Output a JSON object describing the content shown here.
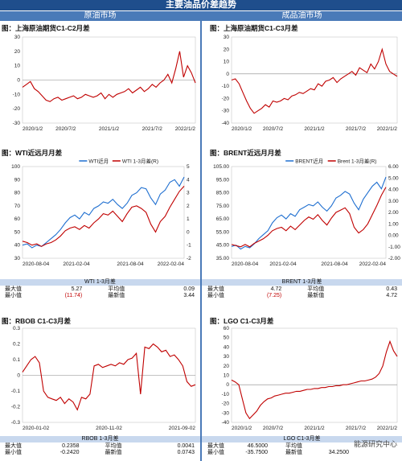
{
  "banner": "主要油品价差趋势",
  "col_left": "原油市场",
  "col_right": "成品油市场",
  "watermark": "能源研究中心",
  "colors": {
    "blue": "#1f6fd0",
    "red": "#c00000",
    "banner": "#1f4e8c"
  },
  "chart_data": [
    {
      "id": "c1",
      "type": "line",
      "title": "图：上海原油期货C1-C2月差",
      "xlabels": [
        "2020/1/2",
        "2020/7/2",
        "2021/1/2",
        "2021/7/2",
        "2022/1/2"
      ],
      "yticks": [
        30,
        20,
        10,
        0,
        -10,
        -20,
        -30
      ],
      "ylim": [
        -30,
        30
      ],
      "series": [
        {
          "color": "red",
          "y": [
            -5,
            -3,
            -1,
            -6,
            -8,
            -11,
            -14,
            -15,
            -13,
            -12,
            -14,
            -13,
            -12,
            -11,
            -13,
            -12,
            -10,
            -11,
            -12,
            -11,
            -9,
            -13,
            -10,
            -12,
            -10,
            -9,
            -8,
            -6,
            -9,
            -7,
            -5,
            -8,
            -6,
            -3,
            -5,
            -2,
            0,
            4,
            -2,
            8,
            20,
            2,
            10,
            5,
            -2
          ]
        }
      ]
    },
    {
      "id": "c2",
      "type": "line",
      "title": "图：上海原油期货C1-C3月差",
      "xlabels": [
        "2020/1/2",
        "2020/7/2",
        "2021/1/2",
        "2021/7/2",
        "2022/1/2"
      ],
      "yticks": [
        30,
        20,
        10,
        0,
        -10,
        -20,
        -30,
        -40
      ],
      "ylim": [
        -40,
        30
      ],
      "series": [
        {
          "color": "red",
          "y": [
            -5,
            -4,
            -8,
            -15,
            -22,
            -28,
            -32,
            -30,
            -28,
            -25,
            -27,
            -22,
            -23,
            -22,
            -20,
            -21,
            -18,
            -17,
            -15,
            -16,
            -14,
            -12,
            -13,
            -8,
            -10,
            -6,
            -5,
            -3,
            -7,
            -4,
            -2,
            0,
            2,
            -1,
            5,
            3,
            1,
            8,
            4,
            10,
            20,
            8,
            2,
            0,
            -2
          ]
        }
      ]
    },
    {
      "id": "c3",
      "type": "line",
      "title": "图：WTI近远月月差",
      "xlabels": [
        "2020-08-04",
        "2021-02-04",
        "2021-08-04",
        "2022-02-04"
      ],
      "yticks": [
        100,
        90,
        80,
        70,
        60,
        50,
        40,
        30
      ],
      "ylim": [
        30,
        100
      ],
      "y2ticks": [
        5,
        4,
        3,
        2,
        1,
        0,
        -1,
        -2
      ],
      "y2lim": [
        -2,
        5
      ],
      "legend": [
        "WTI近月",
        "WTI 1-3月差(R)"
      ],
      "series": [
        {
          "name": "WTI近月",
          "color": "blue",
          "axis": "left",
          "y": [
            40,
            41,
            38,
            40,
            39,
            42,
            45,
            48,
            52,
            57,
            61,
            63,
            60,
            65,
            63,
            68,
            70,
            73,
            72,
            75,
            71,
            68,
            72,
            78,
            80,
            84,
            83,
            76,
            71,
            79,
            82,
            88,
            90,
            85,
            92
          ]
        },
        {
          "name": "WTI 1-3月差(R)",
          "color": "red",
          "axis": "right",
          "y": [
            -0.7,
            -0.8,
            -1.0,
            -0.9,
            -1.1,
            -0.9,
            -0.8,
            -0.6,
            -0.3,
            0.1,
            0.3,
            0.4,
            0.2,
            0.5,
            0.3,
            0.7,
            1.0,
            1.4,
            1.3,
            1.6,
            1.2,
            0.8,
            1.4,
            1.9,
            2.0,
            1.8,
            1.5,
            0.6,
            0.0,
            0.8,
            1.2,
            1.9,
            2.5,
            3.1,
            3.5
          ]
        }
      ]
    },
    {
      "id": "c4",
      "type": "line",
      "title": "图：BRENT近远月月差",
      "xlabels": [
        "2020-08-04",
        "2021-02-04",
        "2021-08-04",
        "2022-02-04"
      ],
      "yticks": [
        "105.00",
        "95.00",
        "85.00",
        "75.00",
        "65.00",
        "55.00",
        "45.00",
        "35.00"
      ],
      "ylim": [
        35,
        105
      ],
      "y2ticks": [
        "6.00",
        "5.00",
        "4.00",
        "3.00",
        "2.00",
        "1.00",
        "0.00",
        "-1.00",
        "-2.00"
      ],
      "y2lim": [
        -2,
        6
      ],
      "legend": [
        "BRENT近月",
        "Brent 1-3月差(R)"
      ],
      "series": [
        {
          "name": "BRENT近月",
          "color": "blue",
          "axis": "left",
          "y": [
            44,
            45,
            42,
            44,
            43,
            46,
            50,
            53,
            56,
            62,
            66,
            68,
            65,
            69,
            67,
            72,
            74,
            76,
            75,
            78,
            74,
            71,
            75,
            81,
            83,
            86,
            84,
            77,
            72,
            80,
            85,
            90,
            93,
            88,
            97
          ]
        },
        {
          "name": "Brent 1-3月差(R)",
          "color": "red",
          "axis": "right",
          "y": [
            -0.8,
            -0.9,
            -1.0,
            -0.8,
            -1.0,
            -0.7,
            -0.5,
            -0.3,
            0.0,
            0.4,
            0.6,
            0.7,
            0.4,
            0.8,
            0.5,
            0.9,
            1.3,
            1.6,
            1.4,
            1.8,
            1.3,
            0.9,
            1.5,
            2.0,
            2.2,
            2.4,
            1.9,
            0.7,
            0.2,
            0.5,
            1.0,
            1.8,
            2.6,
            3.5,
            4.2
          ]
        }
      ]
    },
    {
      "id": "c5",
      "type": "line",
      "title": "图：RBOB C1-C3月差",
      "xlabels": [
        "2020-01-02",
        "2020-11-02",
        "2021-09-02"
      ],
      "yticks": [
        "0.3",
        "0.2",
        "0.1",
        "0",
        "-0.1",
        "-0.2",
        "-0.3"
      ],
      "ylim": [
        -0.3,
        0.3
      ],
      "series": [
        {
          "color": "red",
          "y": [
            0.02,
            0.06,
            0.1,
            0.12,
            0.08,
            -0.1,
            -0.14,
            -0.15,
            -0.16,
            -0.14,
            -0.18,
            -0.15,
            -0.17,
            -0.22,
            -0.14,
            -0.15,
            -0.12,
            0.06,
            0.07,
            0.05,
            0.06,
            0.07,
            0.06,
            0.08,
            0.07,
            0.1,
            0.11,
            0.14,
            -0.12,
            0.18,
            0.17,
            0.2,
            0.18,
            0.15,
            0.16,
            0.12,
            0.13,
            0.1,
            0.06,
            -0.04,
            -0.07,
            -0.06
          ]
        }
      ]
    },
    {
      "id": "c6",
      "type": "line",
      "title": "图：LGO C1-C3月差",
      "xlabels": [
        "2020/1/2",
        "2020/7/2",
        "2021/1/2",
        "2021/7/2",
        "2022/1/2"
      ],
      "yticks": [
        60,
        50,
        40,
        30,
        20,
        10,
        0,
        -10,
        -20,
        -30,
        -40
      ],
      "ylim": [
        -40,
        60
      ],
      "series": [
        {
          "color": "red",
          "y": [
            5,
            3,
            0,
            -15,
            -30,
            -36,
            -32,
            -28,
            -22,
            -18,
            -15,
            -14,
            -12,
            -11,
            -10,
            -9,
            -9,
            -8,
            -7,
            -7,
            -6,
            -5,
            -5,
            -4,
            -4,
            -3,
            -3,
            -2,
            -2,
            -1,
            -1,
            0,
            0,
            1,
            2,
            3,
            4,
            4,
            5,
            6,
            8,
            12,
            20,
            35,
            46,
            36,
            30
          ]
        }
      ]
    }
  ],
  "stats": {
    "wti": {
      "title": "WTI 1-3月差",
      "rows": [
        [
          "最大值",
          "5.27",
          "平均值",
          "0.09"
        ],
        [
          "最小值",
          "(11.74)",
          "最新值",
          "3.44"
        ]
      ]
    },
    "brent": {
      "title": "BRENT 1-3月差",
      "rows": [
        [
          "最大值",
          "4.72",
          "平均值",
          "0.43"
        ],
        [
          "最小值",
          "(7.25)",
          "最新值",
          "4.72"
        ]
      ]
    },
    "rbob": {
      "title": "RBOB 1-3月差",
      "rows": [
        [
          "最大值",
          "0.2358",
          "平均值",
          "0.0041"
        ],
        [
          "最小值",
          "-0.2420",
          "最新值",
          "0.0743"
        ]
      ]
    },
    "lgo": {
      "title": "LGO C1-3月差",
      "rows": [
        [
          "最大值",
          "46.5000",
          "平均值",
          ""
        ],
        [
          "最小值",
          "-35.7500",
          "最新值",
          "34.2500"
        ]
      ]
    }
  }
}
